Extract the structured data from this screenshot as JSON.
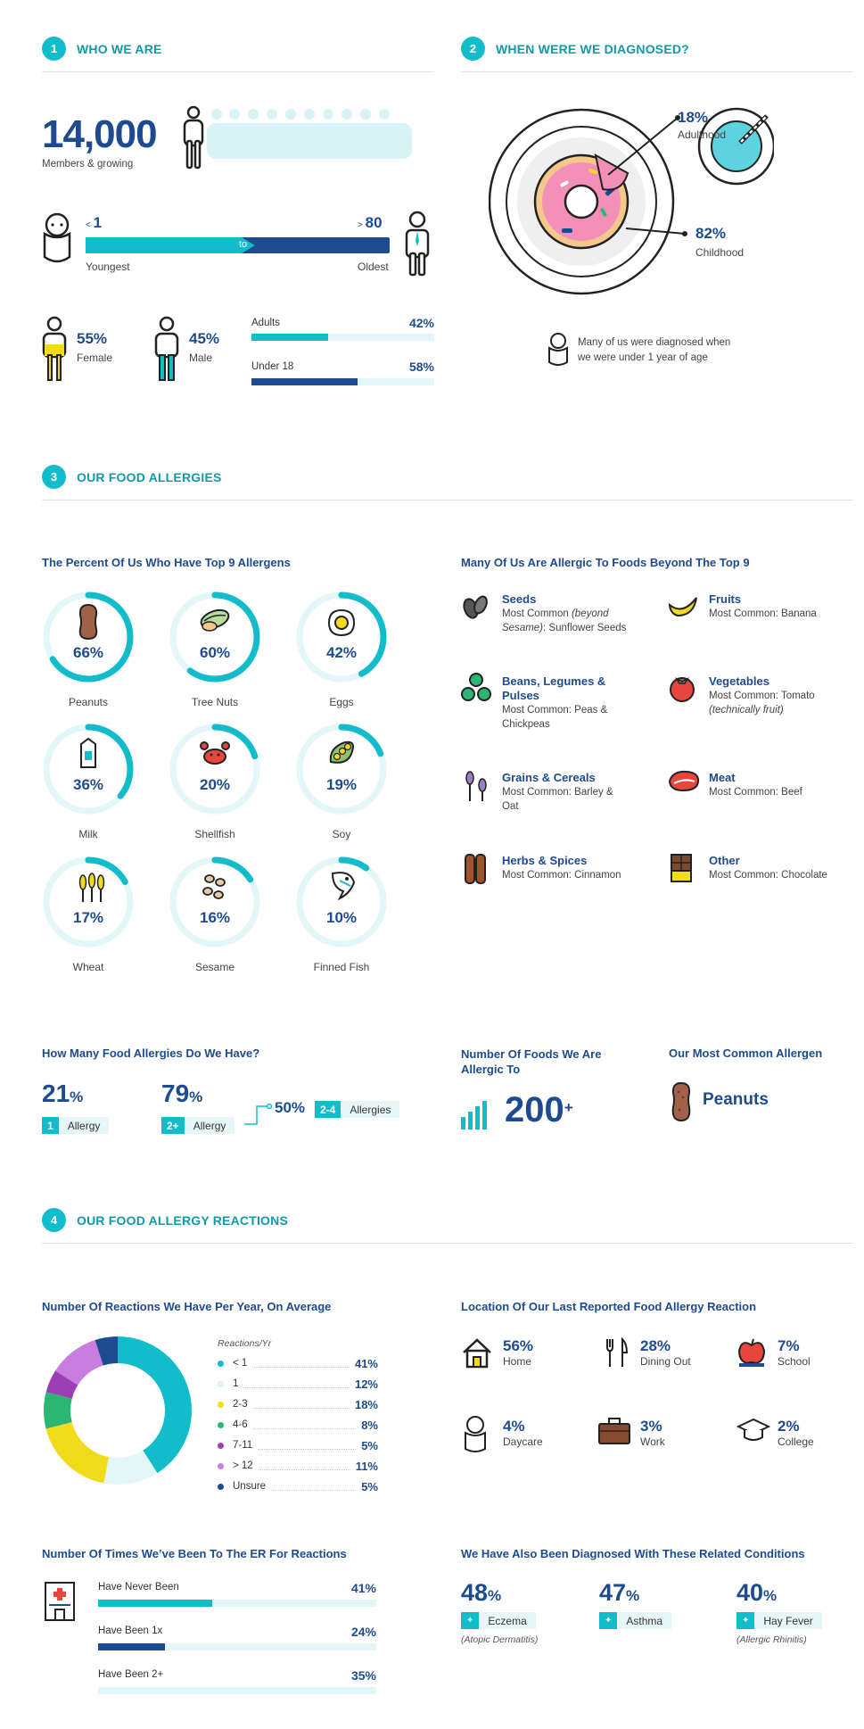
{
  "sections": [
    {
      "num": "1",
      "title": "WHO WE ARE"
    },
    {
      "num": "2",
      "title": "WHEN WERE WE DIAGNOSED?"
    },
    {
      "num": "3",
      "title": "OUR FOOD ALLERGIES"
    },
    {
      "num": "4",
      "title": "OUR FOOD ALLERGY REACTIONS"
    }
  ],
  "who": {
    "members_value": "14,000",
    "members_label": "Members & growing",
    "age_min": "1",
    "age_min_prefix": "<",
    "age_max": "80",
    "age_max_prefix": ">",
    "age_to": "to",
    "youngest": "Youngest",
    "oldest": "Oldest",
    "female_pct": "55%",
    "female_label": "Female",
    "male_pct": "45%",
    "male_label": "Male",
    "adults_label": "Adults",
    "adults_pct": "42%",
    "adults_value": 42,
    "under18_label": "Under 18",
    "under18_pct": "58%",
    "under18_value": 58
  },
  "diagnosed": {
    "adulthood_pct": "18%",
    "adulthood_label": "Adulthood",
    "childhood_pct": "82%",
    "childhood_label": "Childhood",
    "note_line1": "Many of us were diagnosed when",
    "note_line2": "we were under 1 year of age"
  },
  "top9_title": "The Percent Of Us Who Have Top 9 Allergens",
  "beyond_title": "Many Of Us Are Allergic To Foods Beyond The Top 9",
  "beyond": [
    {
      "title": "Seeds",
      "line1": "Most Common ",
      "line1_em": "(beyond",
      "line2_em": "Sesame)",
      "line2": ": Sunflower Seeds",
      "icon": "seeds-icon"
    },
    {
      "title": "Fruits",
      "line1": "Most Common: Banana",
      "icon": "banana-icon"
    },
    {
      "title": "Beans, Legumes &",
      "title2": "Pulses",
      "line1": "Most Common: Peas &",
      "line2": "Chickpeas",
      "icon": "peas-icon"
    },
    {
      "title": "Vegetables",
      "line1": "Most Common: Tomato",
      "line2_em": "(technically fruit)",
      "icon": "tomato-icon"
    },
    {
      "title": "Grains & Cereals",
      "line1": "Most Common: Barley &",
      "line2": "Oat",
      "icon": "grain-icon"
    },
    {
      "title": "Meat",
      "line1": "Most Common: Beef",
      "icon": "meat-icon"
    },
    {
      "title": "Herbs & Spices",
      "line1": "Most Common: Cinnamon",
      "icon": "cinnamon-icon"
    },
    {
      "title": "Other",
      "line1": "Most Common: Chocolate",
      "icon": "chocolate-icon"
    }
  ],
  "howmany": {
    "title": "How Many Food Allergies Do We Have?",
    "one_pct": "21",
    "one_key": "1",
    "one_label": "Allergy",
    "two_pct": "79",
    "two_key": "2+",
    "two_label": "Allergy",
    "sub_pct": "50%",
    "sub_key": "2-4",
    "sub_label": "Allergies",
    "pct_sign": "%"
  },
  "foods": {
    "title1": "Number Of Foods We Are",
    "title2": "Allergic To",
    "value": "200",
    "suffix": "+"
  },
  "common": {
    "title": "Our Most Common Allergen",
    "value": "Peanuts"
  },
  "reactions_title": "Number Of Reactions We Have Per Year, On Average",
  "reactions_legend_title": "Reactions/Yr",
  "location_title": "Location Of Our Last Reported Food Allergy Reaction",
  "locations": [
    {
      "pct": "56%",
      "name": "Home",
      "icon": "house-icon"
    },
    {
      "pct": "28%",
      "name": "Dining Out",
      "icon": "cutlery-icon"
    },
    {
      "pct": "7%",
      "name": "School",
      "icon": "apple-icon"
    },
    {
      "pct": "4%",
      "name": "Daycare",
      "icon": "baby-icon"
    },
    {
      "pct": "3%",
      "name": "Work",
      "icon": "briefcase-icon"
    },
    {
      "pct": "2%",
      "name": "College",
      "icon": "graduation-cap-icon"
    }
  ],
  "er": {
    "title": "Number Of Times We’ve Been To The ER For Reactions",
    "rows": [
      {
        "label": "Have Never Been",
        "pct": "41%",
        "value": 41,
        "color": "#13bccb"
      },
      {
        "label": "Have Been 1x",
        "pct": "24%",
        "value": 24,
        "color": "#1e4b8f"
      },
      {
        "label": "Have Been 2+",
        "pct": "35%",
        "value": 0,
        "color": "#e3f6f8"
      }
    ]
  },
  "related": {
    "title": "We Have Also Been Diagnosed With These Related Conditions",
    "items": [
      {
        "pct": "48",
        "name": "Eczema",
        "sub": "(Atopic Dermatitis)",
        "icon": "eczema-icon"
      },
      {
        "pct": "47",
        "name": "Asthma",
        "sub": "",
        "icon": "lungs-icon"
      },
      {
        "pct": "40",
        "name": "Hay Fever",
        "sub": "(Allergic Rhinitis)",
        "icon": "flower-icon"
      }
    ]
  },
  "chart_data": [
    {
      "type": "bar",
      "categories": [
        "Peanuts",
        "Tree Nuts",
        "Eggs",
        "Milk",
        "Shellfish",
        "Soy",
        "Wheat",
        "Sesame",
        "Finned Fish"
      ],
      "values": [
        66,
        60,
        42,
        36,
        20,
        19,
        17,
        16,
        10
      ],
      "labels": [
        "66%",
        "60%",
        "42%",
        "36%",
        "20%",
        "19%",
        "17%",
        "16%",
        "10%"
      ],
      "icons": [
        "peanut-icon",
        "tree-nut-icon",
        "egg-icon",
        "milk-icon",
        "crab-icon",
        "soy-icon",
        "wheat-icon",
        "sesame-icon",
        "fish-icon"
      ],
      "ylim": [
        0,
        100
      ],
      "color": "#13bccb",
      "track_color": "#e3f6f8"
    },
    {
      "type": "pie",
      "categories": [
        "< 1",
        "1",
        "2-3",
        "4-6",
        "7-11",
        "> 12",
        "Unsure"
      ],
      "values": [
        41,
        12,
        18,
        8,
        5,
        11,
        5
      ],
      "labels": [
        "41%",
        "12%",
        "18%",
        "8%",
        "5%",
        "11%",
        "5%"
      ],
      "colors": [
        "#13bccb",
        "#e3f6f8",
        "#f2db1a",
        "#2bb673",
        "#9b3fb5",
        "#c77ee0",
        "#1e4b8f"
      ]
    },
    {
      "type": "pie",
      "categories": [
        "Adulthood",
        "Childhood"
      ],
      "values": [
        18,
        82
      ]
    }
  ]
}
